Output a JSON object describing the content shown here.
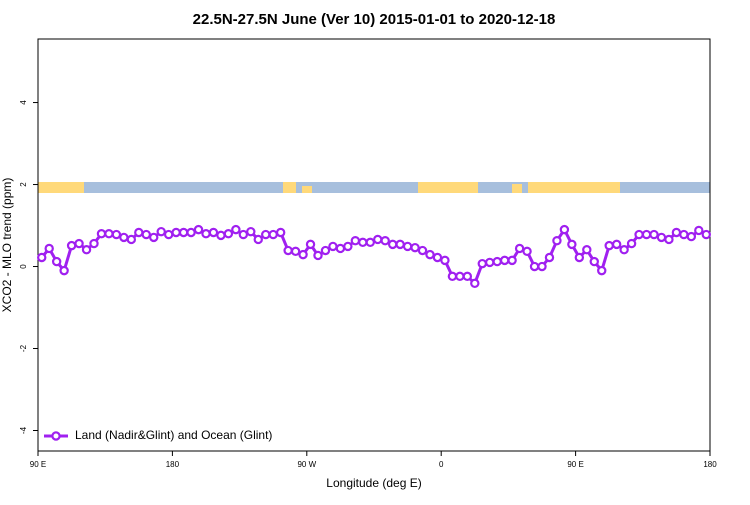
{
  "chart_data": {
    "type": "line",
    "title": "22.5N-27.5N June (Ver 10)   2015-01-01 to 2020-12-18",
    "xlabel": "Longitude (deg E)",
    "ylabel": "XCO2 - MLO trend (ppm)",
    "xlim": [
      90,
      540
    ],
    "ylim": [
      -4.5,
      5.55
    ],
    "xticks": [
      {
        "value": 90,
        "label": "90 E"
      },
      180,
      {
        "value": 270,
        "label": "90 W"
      },
      {
        "value": 360,
        "label": "0"
      },
      {
        "value": 450,
        "label": "90 E"
      },
      {
        "value": 540,
        "label": "180"
      }
    ],
    "yticks": [
      4,
      2,
      0,
      -2,
      -4
    ],
    "legend": "bottom-left",
    "x": [
      92.5,
      97.5,
      102.5,
      107.5,
      112.5,
      117.5,
      122.5,
      127.5,
      132.5,
      137.5,
      142.5,
      147.5,
      152.5,
      157.5,
      162.5,
      167.5,
      172.5,
      177.5,
      182.5,
      187.5,
      192.5,
      197.5,
      202.5,
      207.5,
      212.5,
      217.5,
      222.5,
      227.5,
      232.5,
      237.5,
      242.5,
      247.5,
      252.5,
      257.5,
      262.5,
      267.5,
      272.5,
      277.5,
      282.5,
      287.5,
      292.5,
      297.5,
      302.5,
      307.5,
      312.5,
      317.5,
      322.5,
      327.5,
      332.5,
      337.5,
      342.5,
      347.5,
      352.5,
      357.5,
      362.5,
      367.5,
      372.5,
      377.5,
      382.5,
      387.5,
      392.5,
      397.5,
      402.5,
      407.5,
      412.5,
      417.5,
      422.5,
      427.5,
      432.5,
      437.5,
      442.5,
      447.5,
      452.5,
      457.5,
      462.5,
      467.5,
      472.5,
      477.5,
      482.5,
      487.5,
      492.5,
      497.5,
      502.5,
      507.5,
      512.5,
      517.5,
      522.5,
      527.5,
      532.5,
      537.5
    ],
    "series": [
      {
        "name": "Land (Nadir&Glint) and Ocean (Glint)",
        "color": "#a020f0",
        "values": [
          0.22,
          0.44,
          0.12,
          -0.1,
          0.51,
          0.56,
          0.41,
          0.56,
          0.8,
          0.8,
          0.78,
          0.71,
          0.66,
          0.83,
          0.78,
          0.71,
          0.85,
          0.78,
          0.83,
          0.83,
          0.83,
          0.9,
          0.8,
          0.83,
          0.76,
          0.8,
          0.9,
          0.78,
          0.85,
          0.66,
          0.78,
          0.78,
          0.83,
          0.39,
          0.37,
          0.29,
          0.54,
          0.27,
          0.39,
          0.49,
          0.44,
          0.49,
          0.63,
          0.59,
          0.59,
          0.66,
          0.63,
          0.54,
          0.54,
          0.49,
          0.46,
          0.39,
          0.29,
          0.22,
          0.15,
          -0.24,
          -0.24,
          -0.24,
          -0.41,
          0.07,
          0.1,
          0.12,
          0.15,
          0.15,
          0.44,
          0.37,
          0,
          0,
          0.22,
          0.63,
          0.9,
          0.54,
          0.22,
          0.41,
          0.12,
          -0.1,
          0.51,
          0.54,
          0.41,
          0.56,
          0.78,
          0.78,
          0.78,
          0.71,
          0.66,
          0.83,
          0.78,
          0.73,
          0.88,
          0.78
        ]
      }
    ]
  }
}
